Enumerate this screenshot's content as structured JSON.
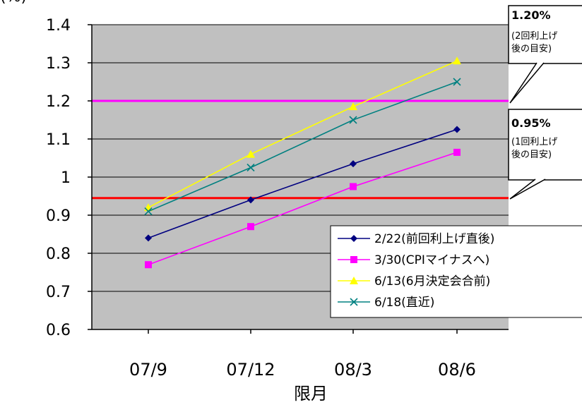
{
  "chart_data": {
    "type": "line",
    "ylabel": "(%)",
    "xlabel": "限月",
    "categories": [
      "07/9",
      "07/12",
      "08/3",
      "08/6"
    ],
    "ylim": [
      0.6,
      1.4
    ],
    "yticks": [
      "0.6",
      "0.7",
      "0.8",
      "0.9",
      "1",
      "1.1",
      "1.2",
      "1.3",
      "1.4"
    ],
    "grid": true,
    "legend_position": "bottom-right",
    "series": [
      {
        "name": "2/22(前回利上げ直後)",
        "values": [
          0.84,
          0.94,
          1.035,
          1.125
        ],
        "color": "#000080",
        "marker": "diamond"
      },
      {
        "name": "3/30(CPIマイナスへ)",
        "values": [
          0.77,
          0.87,
          0.975,
          1.065
        ],
        "color": "#ff00ff",
        "marker": "square"
      },
      {
        "name": "6/13(6月決定会合前)",
        "values": [
          0.92,
          1.06,
          1.185,
          1.305
        ],
        "color": "#ffff00",
        "marker": "triangle"
      },
      {
        "name": "6/18(直近)",
        "values": [
          0.91,
          1.025,
          1.15,
          1.25
        ],
        "color": "#008080",
        "marker": "x"
      }
    ],
    "reference_lines": [
      {
        "value": 1.2,
        "color": "#ff00ff",
        "label": "1.20%",
        "note": "(2回利上げ 後の目安)"
      },
      {
        "value": 0.945,
        "color": "#ff0000",
        "label": "0.95%",
        "note": "(1回利上げ 後の目安)"
      }
    ]
  }
}
